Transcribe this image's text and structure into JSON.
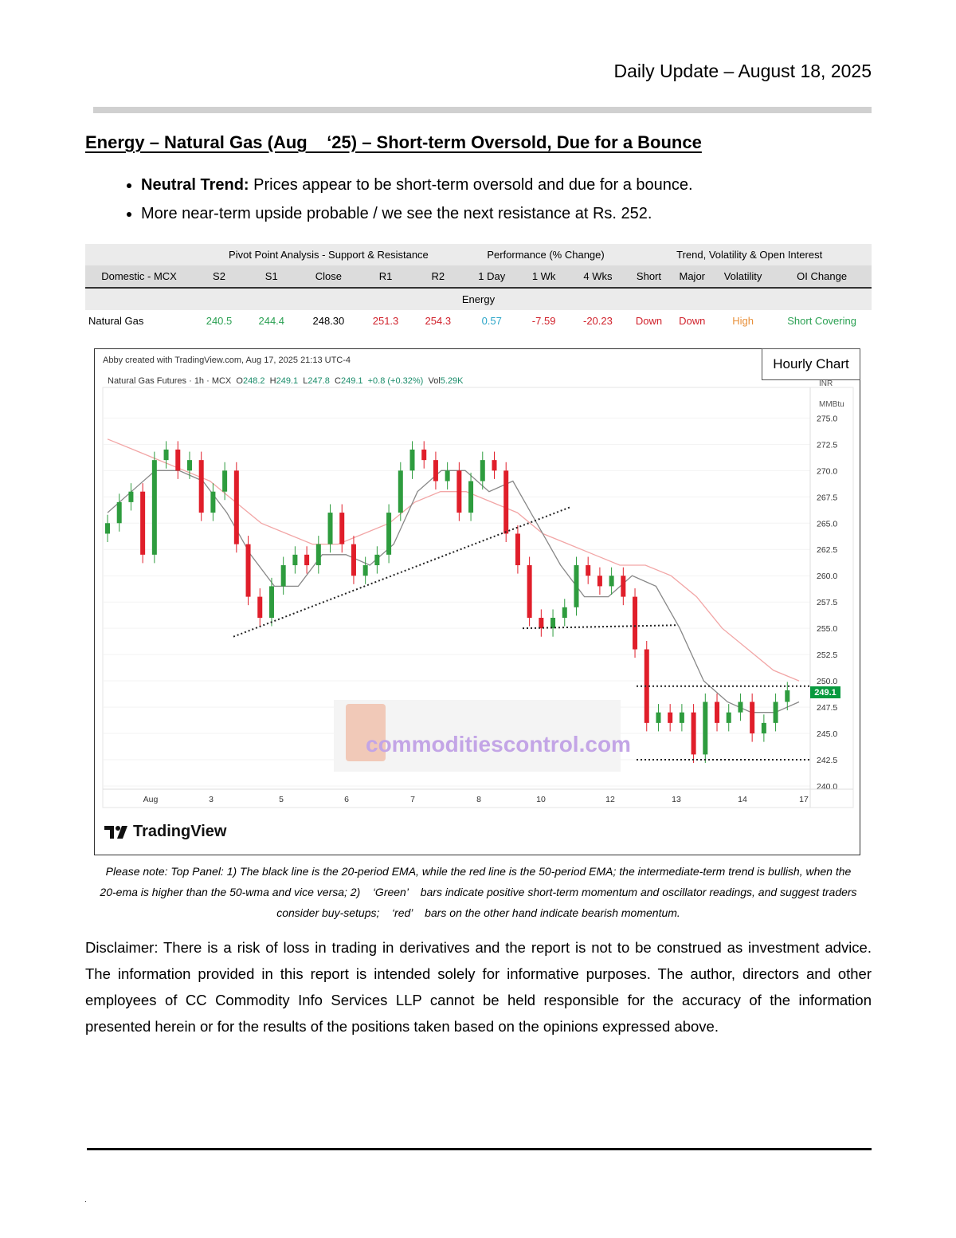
{
  "header": {
    "date": "Daily Update – August 18, 2025"
  },
  "title": "Energy – Natural Gas (Aug    ‘25) – Short-term Oversold, Due for a Bounce",
  "bullets": [
    {
      "bold": "Neutral Trend:",
      "text": " Prices appear to be short-term oversold and due for a bounce."
    },
    {
      "bold": "",
      "text": "More near-term upside probable / we see the next resistance at Rs. 252."
    }
  ],
  "table": {
    "groups": [
      "Pivot Point Analysis - Support & Resistance",
      "Performance (% Change)",
      "Trend, Volatility & Open Interest"
    ],
    "columns": [
      "Domestic - MCX",
      "S2",
      "S1",
      "Close",
      "R1",
      "R2",
      "1 Day",
      "1 Wk",
      "4 Wks",
      "Short",
      "Major",
      "Volatility",
      "OI Change"
    ],
    "section": "Energy",
    "row": [
      "Natural Gas",
      "240.5",
      "244.4",
      "248.30",
      "251.3",
      "254.3",
      "0.57",
      "-7.59",
      "-20.23",
      "Down",
      "Down",
      "High",
      "Short Covering"
    ]
  },
  "chart": {
    "label": "Hourly Chart",
    "meta": "Abby created with TradingView.com, Aug 17, 2025 21:13 UTC-4",
    "legend_name": "Natural Gas Futures · 1h · MCX",
    "legend_o": "O",
    "legend_o_v": "248.2",
    "legend_h": "H",
    "legend_h_v": "249.1",
    "legend_l": "L",
    "legend_l_v": "247.8",
    "legend_c": "C",
    "legend_c_v": "249.1",
    "legend_chg": "+0.8 (+0.32%)",
    "legend_vol": "Vol",
    "legend_vol_v": "5.29K",
    "logo": "TradingView",
    "watermark": "commoditiescontrol.com",
    "price_tag": "249.1",
    "unit1": "INR",
    "unit2": "MMBtu"
  },
  "chart_data": {
    "type": "candlestick",
    "title": "Natural Gas Futures · 1h · MCX",
    "y_ticks": [
      "275.0",
      "272.5",
      "270.0",
      "267.5",
      "265.0",
      "262.5",
      "260.0",
      "257.5",
      "255.0",
      "252.5",
      "250.0",
      "247.5",
      "245.0",
      "242.5",
      "240.0"
    ],
    "ylim": [
      240,
      276
    ],
    "x_ticks": [
      "Aug",
      "3",
      "5",
      "6",
      "7",
      "8",
      "10",
      "12",
      "13",
      "14",
      "17"
    ],
    "close_path": [
      265,
      267,
      268,
      262,
      271,
      272,
      270,
      271,
      266,
      268,
      270,
      263,
      258,
      256,
      259,
      261,
      262,
      261,
      263,
      266,
      263,
      260,
      261,
      262,
      266,
      270,
      272,
      271,
      269,
      270,
      266,
      269,
      271,
      270,
      264,
      261,
      256,
      255,
      256,
      257,
      261,
      260,
      259,
      260,
      258,
      253,
      246,
      247,
      246,
      247,
      243,
      248,
      246,
      247,
      248,
      245,
      246,
      248,
      249.1
    ],
    "ema20": [
      266,
      268,
      270,
      270,
      269,
      266,
      262,
      259,
      259,
      262,
      262,
      261,
      263,
      268,
      270,
      270,
      268,
      269,
      265,
      261,
      258,
      258,
      260,
      259,
      255,
      250,
      248,
      247,
      247,
      248
    ],
    "ema50": [
      273,
      272,
      271,
      270,
      269,
      267,
      265,
      264,
      263,
      263,
      264,
      265,
      267,
      268,
      268,
      267,
      266,
      264,
      263,
      262,
      261,
      261,
      260,
      258,
      255,
      253,
      251,
      250
    ],
    "support_lines": [
      255,
      249.5,
      242.5
    ]
  }
}
